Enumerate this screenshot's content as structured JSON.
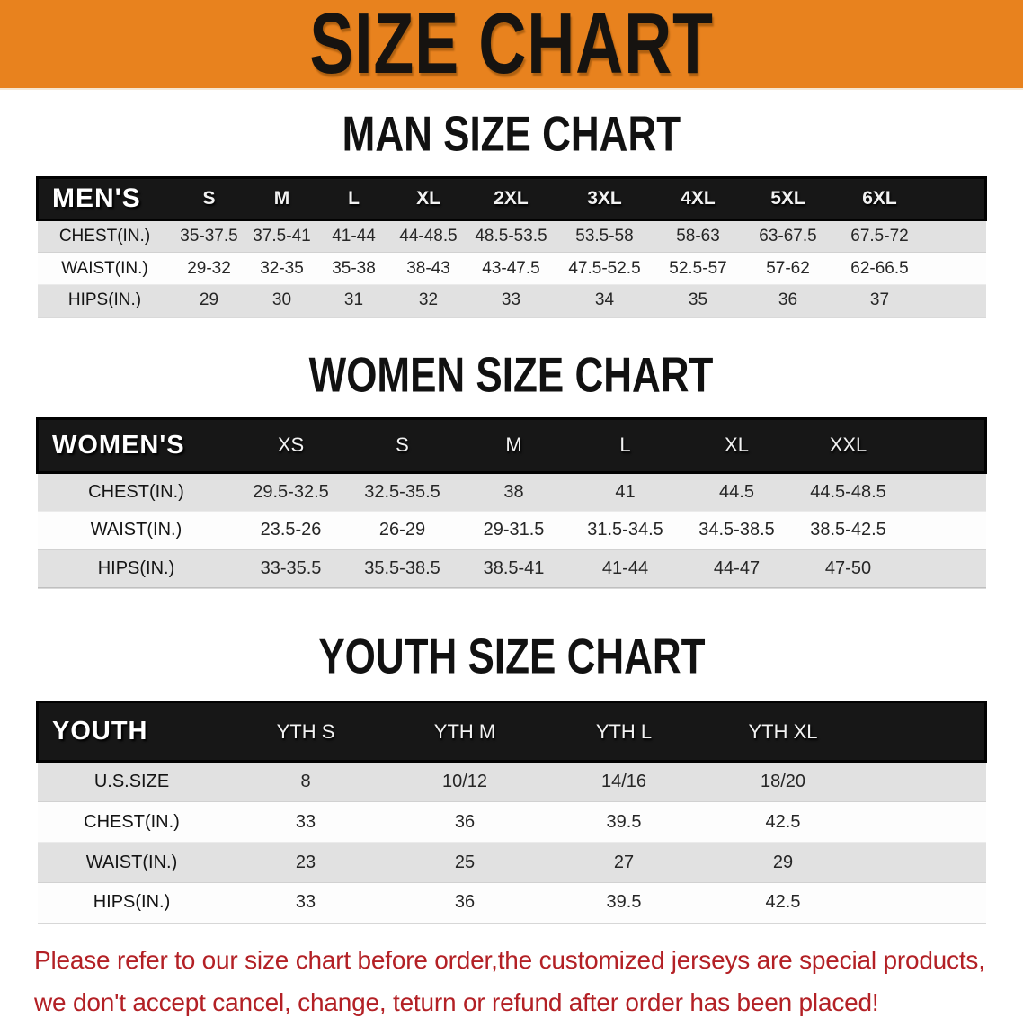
{
  "banner": {
    "title": "SIZE CHART",
    "bg_color": "#e8821e",
    "text_color": "#161310"
  },
  "sections": [
    {
      "title": "MAN SIZE CHART",
      "table": {
        "header_label": "MEN'S",
        "columns": [
          "S",
          "M",
          "L",
          "XL",
          "2XL",
          "3XL",
          "4XL",
          "5XL",
          "6XL"
        ],
        "rows": [
          {
            "label": "CHEST(IN.)",
            "values": [
              "35-37.5",
              "37.5-41",
              "41-44",
              "44-48.5",
              "48.5-53.5",
              "53.5-58",
              "58-63",
              "63-67.5",
              "67.5-72"
            ]
          },
          {
            "label": "WAIST(IN.)",
            "values": [
              "29-32",
              "32-35",
              "35-38",
              "38-43",
              "43-47.5",
              "47.5-52.5",
              "52.5-57",
              "57-62",
              "62-66.5"
            ]
          },
          {
            "label": "HIPS(IN.)",
            "values": [
              "29",
              "30",
              "31",
              "32",
              "33",
              "34",
              "35",
              "36",
              "37"
            ]
          }
        ]
      }
    },
    {
      "title": "WOMEN SIZE CHART",
      "table": {
        "header_label": "WOMEN'S",
        "columns": [
          "XS",
          "S",
          "M",
          "L",
          "XL",
          "XXL"
        ],
        "rows": [
          {
            "label": "CHEST(IN.)",
            "values": [
              "29.5-32.5",
              "32.5-35.5",
              "38",
              "41",
              "44.5",
              "44.5-48.5"
            ]
          },
          {
            "label": "WAIST(IN.)",
            "values": [
              "23.5-26",
              "26-29",
              "29-31.5",
              "31.5-34.5",
              "34.5-38.5",
              "38.5-42.5"
            ]
          },
          {
            "label": "HIPS(IN.)",
            "values": [
              "33-35.5",
              "35.5-38.5",
              "38.5-41",
              "41-44",
              "44-47",
              "47-50"
            ]
          }
        ]
      }
    },
    {
      "title": "YOUTH SIZE CHART",
      "table": {
        "header_label": "YOUTH",
        "columns": [
          "YTH S",
          "YTH M",
          "YTH L",
          "YTH XL"
        ],
        "rows": [
          {
            "label": "U.S.SIZE",
            "values": [
              "8",
              "10/12",
              "14/16",
              "18/20"
            ]
          },
          {
            "label": "CHEST(IN.)",
            "values": [
              "33",
              "36",
              "39.5",
              "42.5"
            ]
          },
          {
            "label": "WAIST(IN.)",
            "values": [
              "23",
              "25",
              "27",
              "29"
            ]
          },
          {
            "label": "HIPS(IN.)",
            "values": [
              "33",
              "36",
              "39.5",
              "42.5"
            ]
          }
        ]
      }
    }
  ],
  "disclaimer": {
    "line1": "Please refer to our size chart before order,the customized jerseys are special products,",
    "line2": "we don't accept cancel, change, teturn or refund after order has been placed!",
    "color": "#b32025"
  }
}
